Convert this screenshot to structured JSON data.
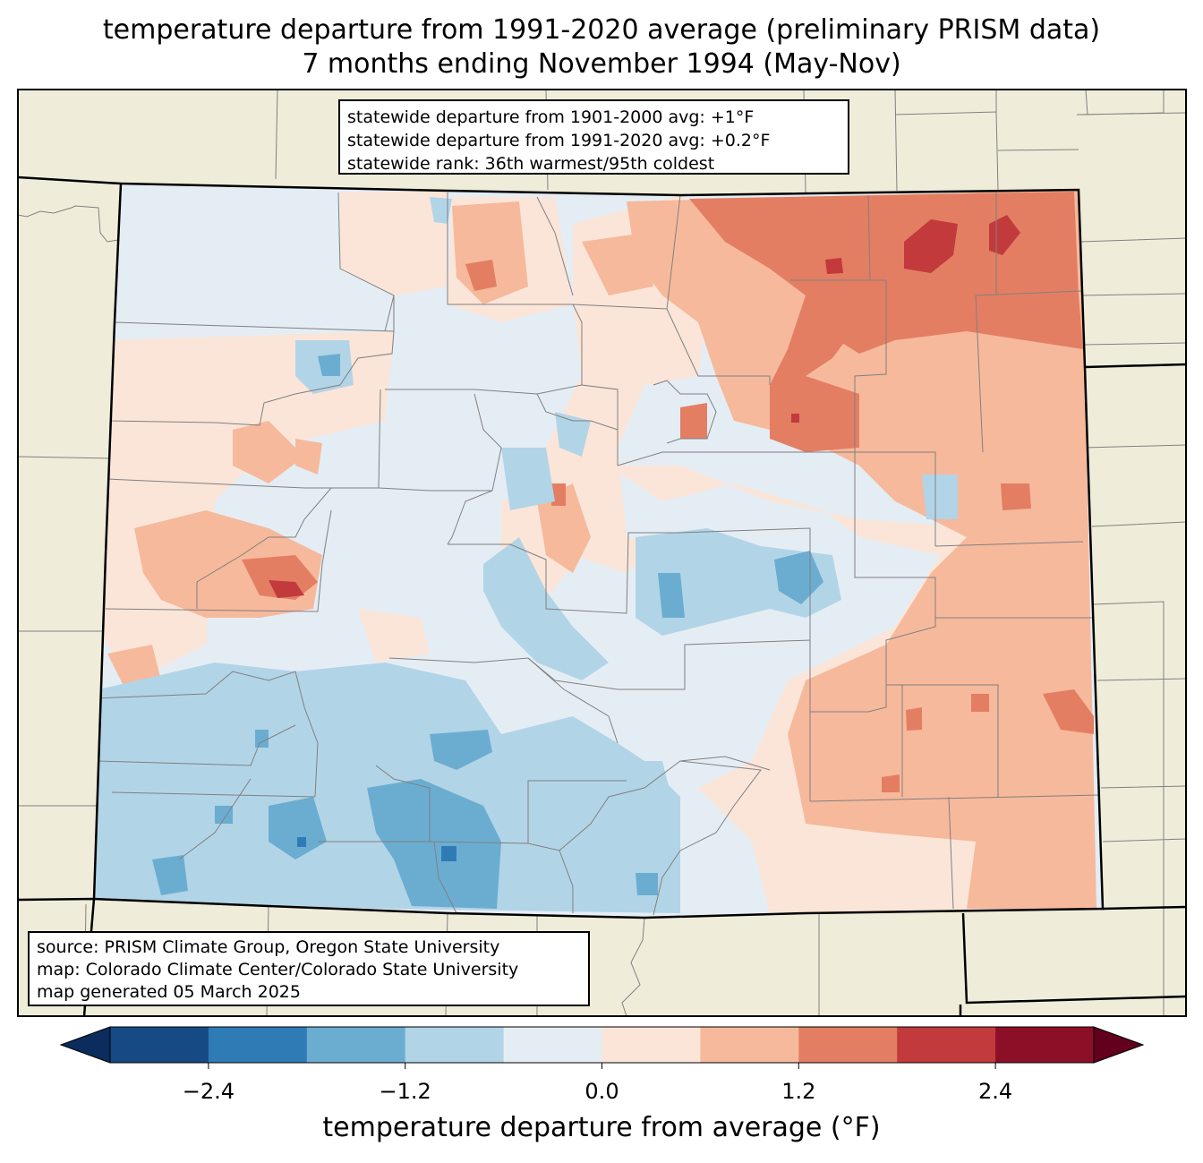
{
  "title": {
    "line1": "temperature departure from 1991-2020 average (preliminary PRISM data)",
    "line2": "7 months ending November 1994 (May-Nov)"
  },
  "stats_box": {
    "line1": "statewide departure from 1901-2000 avg: +1°F",
    "line2": "statewide departure from 1991-2020 avg: +0.2°F",
    "line3": "statewide rank: 36th warmest/95th coldest"
  },
  "source_box": {
    "line1": "source: PRISM Climate Group, Oregon State University",
    "line2": "map: Colorado Climate Center/Colorado State University",
    "line3": "map generated 05 March 2025"
  },
  "colorbar": {
    "label": "temperature departure from average (°F)",
    "ticks": [
      "−2.4",
      "−1.2",
      "0.0",
      "1.2",
      "2.4"
    ],
    "bins": [
      {
        "min": -3.0,
        "max": -2.4,
        "color": "#154a84"
      },
      {
        "min": -2.4,
        "max": -1.8,
        "color": "#2f7bb6"
      },
      {
        "min": -1.8,
        "max": -1.2,
        "color": "#6badd1"
      },
      {
        "min": -1.2,
        "max": -0.6,
        "color": "#b2d4e7"
      },
      {
        "min": -0.6,
        "max": 0.0,
        "color": "#e5edf4"
      },
      {
        "min": 0.0,
        "max": 0.6,
        "color": "#fbe5d8"
      },
      {
        "min": 0.6,
        "max": 1.2,
        "color": "#f6b99c"
      },
      {
        "min": 1.2,
        "max": 1.8,
        "color": "#e37e63"
      },
      {
        "min": 1.8,
        "max": 2.4,
        "color": "#c23a3c"
      },
      {
        "min": 2.4,
        "max": 3.0,
        "color": "#8c0f27"
      }
    ],
    "under_color": "#0b2c5c",
    "over_color": "#62001e"
  },
  "colors": {
    "land_background": "#efedda",
    "county_lines": "#808080",
    "state_lines": "#000000"
  }
}
